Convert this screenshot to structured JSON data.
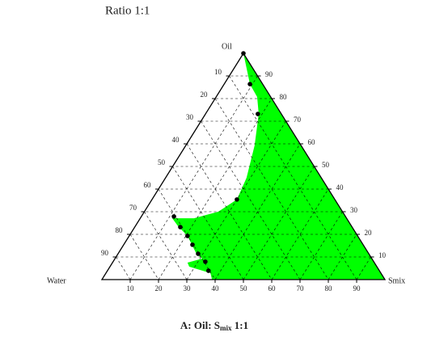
{
  "chart_data": {
    "type": "ternary",
    "title": "Ratio 1:1",
    "axes": {
      "top": "Oil",
      "left": "Water",
      "right": "Smix"
    },
    "bottom_ticks": [
      10,
      20,
      30,
      40,
      50,
      60,
      70,
      80,
      90
    ],
    "left_ticks": [
      10,
      20,
      30,
      40,
      50,
      60,
      70,
      80,
      90
    ],
    "right_ticks": [
      10,
      20,
      30,
      40,
      50,
      60,
      70,
      80,
      90
    ],
    "region": {
      "color": "#00ff00",
      "points": [
        [
          100,
          0
        ],
        [
          86.4,
          9.1
        ],
        [
          80.7,
          14.5
        ],
        [
          73.2,
          18.8
        ],
        [
          59.3,
          24.3
        ],
        [
          45,
          28.6
        ],
        [
          35.4,
          30
        ],
        [
          30,
          26.1
        ],
        [
          27.1,
          19
        ],
        [
          27.1,
          11.3
        ],
        [
          23.6,
          15.1
        ],
        [
          19.3,
          20.6
        ],
        [
          11.4,
          27.7
        ],
        [
          9.3,
          30.8
        ],
        [
          7.5,
          26.5
        ],
        [
          5.7,
          28
        ],
        [
          2.9,
          36.9
        ],
        [
          0,
          38.9
        ],
        [
          0,
          100
        ]
      ]
    },
    "points": {
      "color": "#000000",
      "values": [
        [
          100,
          0
        ],
        [
          86.4,
          9.1
        ],
        [
          73.2,
          18.5
        ],
        [
          35.4,
          30
        ],
        [
          27.9,
          11.5
        ],
        [
          23.2,
          16.1
        ],
        [
          19.3,
          20.6
        ],
        [
          15.4,
          24.3
        ],
        [
          11.4,
          28.3
        ],
        [
          7.9,
          32.6
        ],
        [
          3.9,
          35.7
        ]
      ]
    },
    "caption": {
      "prefix": "A: Oil: S",
      "subscript": "mix",
      "suffix": " 1:1"
    }
  }
}
